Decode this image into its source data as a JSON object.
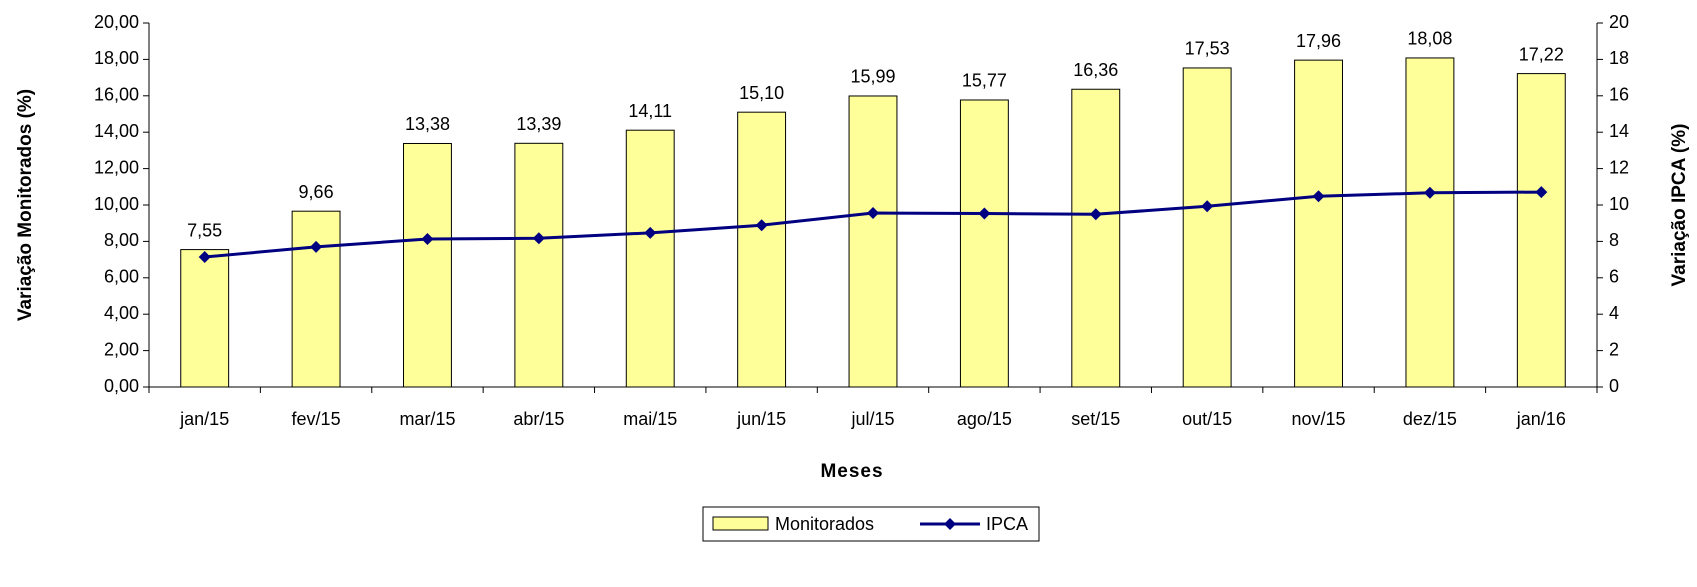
{
  "chart_data": {
    "type": "bar",
    "x_label": "Meses",
    "y_label": "Variação Monitorados (%)",
    "y2_label": "Variação IPCA (%)",
    "categories": [
      "jan/15",
      "fev/15",
      "mar/15",
      "abr/15",
      "mai/15",
      "jun/15",
      "jul/15",
      "ago/15",
      "set/15",
      "out/15",
      "nov/15",
      "dez/15",
      "jan/16"
    ],
    "series": [
      {
        "name": "Monitorados",
        "type": "bar",
        "color": "#ffff99",
        "values": [
          7.55,
          9.66,
          13.38,
          13.39,
          14.11,
          15.1,
          15.99,
          15.77,
          16.36,
          17.53,
          17.96,
          18.08,
          17.22
        ],
        "value_labels": [
          "7,55",
          "9,66",
          "13,38",
          "13,39",
          "14,11",
          "15,10",
          "15,99",
          "15,77",
          "16,36",
          "17,53",
          "17,96",
          "18,08",
          "17,22"
        ]
      },
      {
        "name": "IPCA",
        "type": "line",
        "axis": "y2",
        "color": "#000080",
        "values": [
          7.14,
          7.7,
          8.13,
          8.17,
          8.47,
          8.89,
          9.56,
          9.53,
          9.49,
          9.93,
          10.48,
          10.67,
          10.71
        ]
      }
    ],
    "ylim": [
      0,
      20
    ],
    "yticks": [
      {
        "value": 0,
        "label": "0,00"
      },
      {
        "value": 2,
        "label": "2,00"
      },
      {
        "value": 4,
        "label": "4,00"
      },
      {
        "value": 6,
        "label": "6,00"
      },
      {
        "value": 8,
        "label": "8,00"
      },
      {
        "value": 10,
        "label": "10,00"
      },
      {
        "value": 12,
        "label": "12,00"
      },
      {
        "value": 14,
        "label": "14,00"
      },
      {
        "value": 16,
        "label": "16,00"
      },
      {
        "value": 18,
        "label": "18,00"
      },
      {
        "value": 20,
        "label": "20,00"
      }
    ],
    "y2lim": [
      0,
      20
    ],
    "y2ticks": [
      0,
      2,
      4,
      6,
      8,
      10,
      12,
      14,
      16,
      18,
      20
    ],
    "grid": false
  }
}
